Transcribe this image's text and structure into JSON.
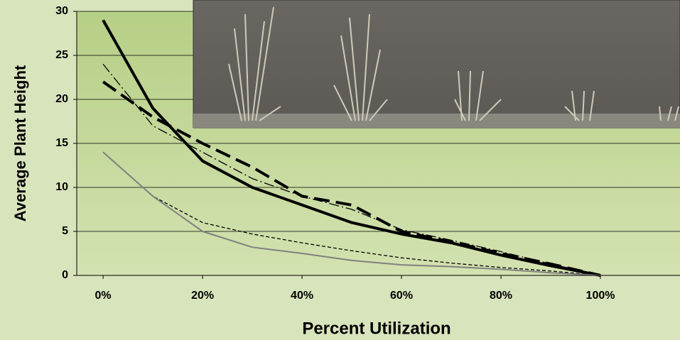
{
  "chart_data": {
    "type": "line",
    "y_label": "Average Plant Height",
    "x_label": "Percent Utilization",
    "x": [
      0,
      10,
      20,
      30,
      40,
      50,
      60,
      70,
      80,
      90,
      100
    ],
    "xlim": [
      -5.3,
      116
    ],
    "xticks": [
      {
        "value": 0,
        "label": "0%"
      },
      {
        "value": 20,
        "label": "20%"
      },
      {
        "value": 40,
        "label": "40%"
      },
      {
        "value": 60,
        "label": "60%"
      },
      {
        "value": 80,
        "label": "80%"
      },
      {
        "value": 100,
        "label": "100%"
      }
    ],
    "ylim": [
      0,
      30
    ],
    "yticks": [
      0,
      5,
      10,
      15,
      20,
      25,
      30
    ],
    "grid": true,
    "series": [
      {
        "color": "#000000",
        "style": "solid",
        "weight": "thick",
        "values": [
          29,
          19,
          13,
          10,
          8,
          6,
          4.7,
          3.7,
          2.3,
          1.1,
          0
        ]
      },
      {
        "color": "#000000",
        "style": "long-dash",
        "weight": "thick",
        "values": [
          22,
          18,
          15,
          12.3,
          9,
          8,
          5,
          3.8,
          2.5,
          1.3,
          0
        ]
      },
      {
        "color": "#000000",
        "style": "dash-dot",
        "weight": "thin",
        "values": [
          24,
          17,
          14,
          11,
          9,
          7.5,
          5.2,
          4,
          2.7,
          1.3,
          0
        ]
      },
      {
        "color": "#000000",
        "style": "short-dash",
        "weight": "thin",
        "values": [
          14,
          9,
          6,
          4.7,
          3.7,
          2.8,
          2,
          1.4,
          0.9,
          0.5,
          0
        ]
      },
      {
        "color": "#808080",
        "style": "solid",
        "weight": "medium",
        "values": [
          14,
          9,
          5,
          3.2,
          2.5,
          1.7,
          1.2,
          1,
          0.7,
          0.3,
          0
        ]
      }
    ]
  }
}
